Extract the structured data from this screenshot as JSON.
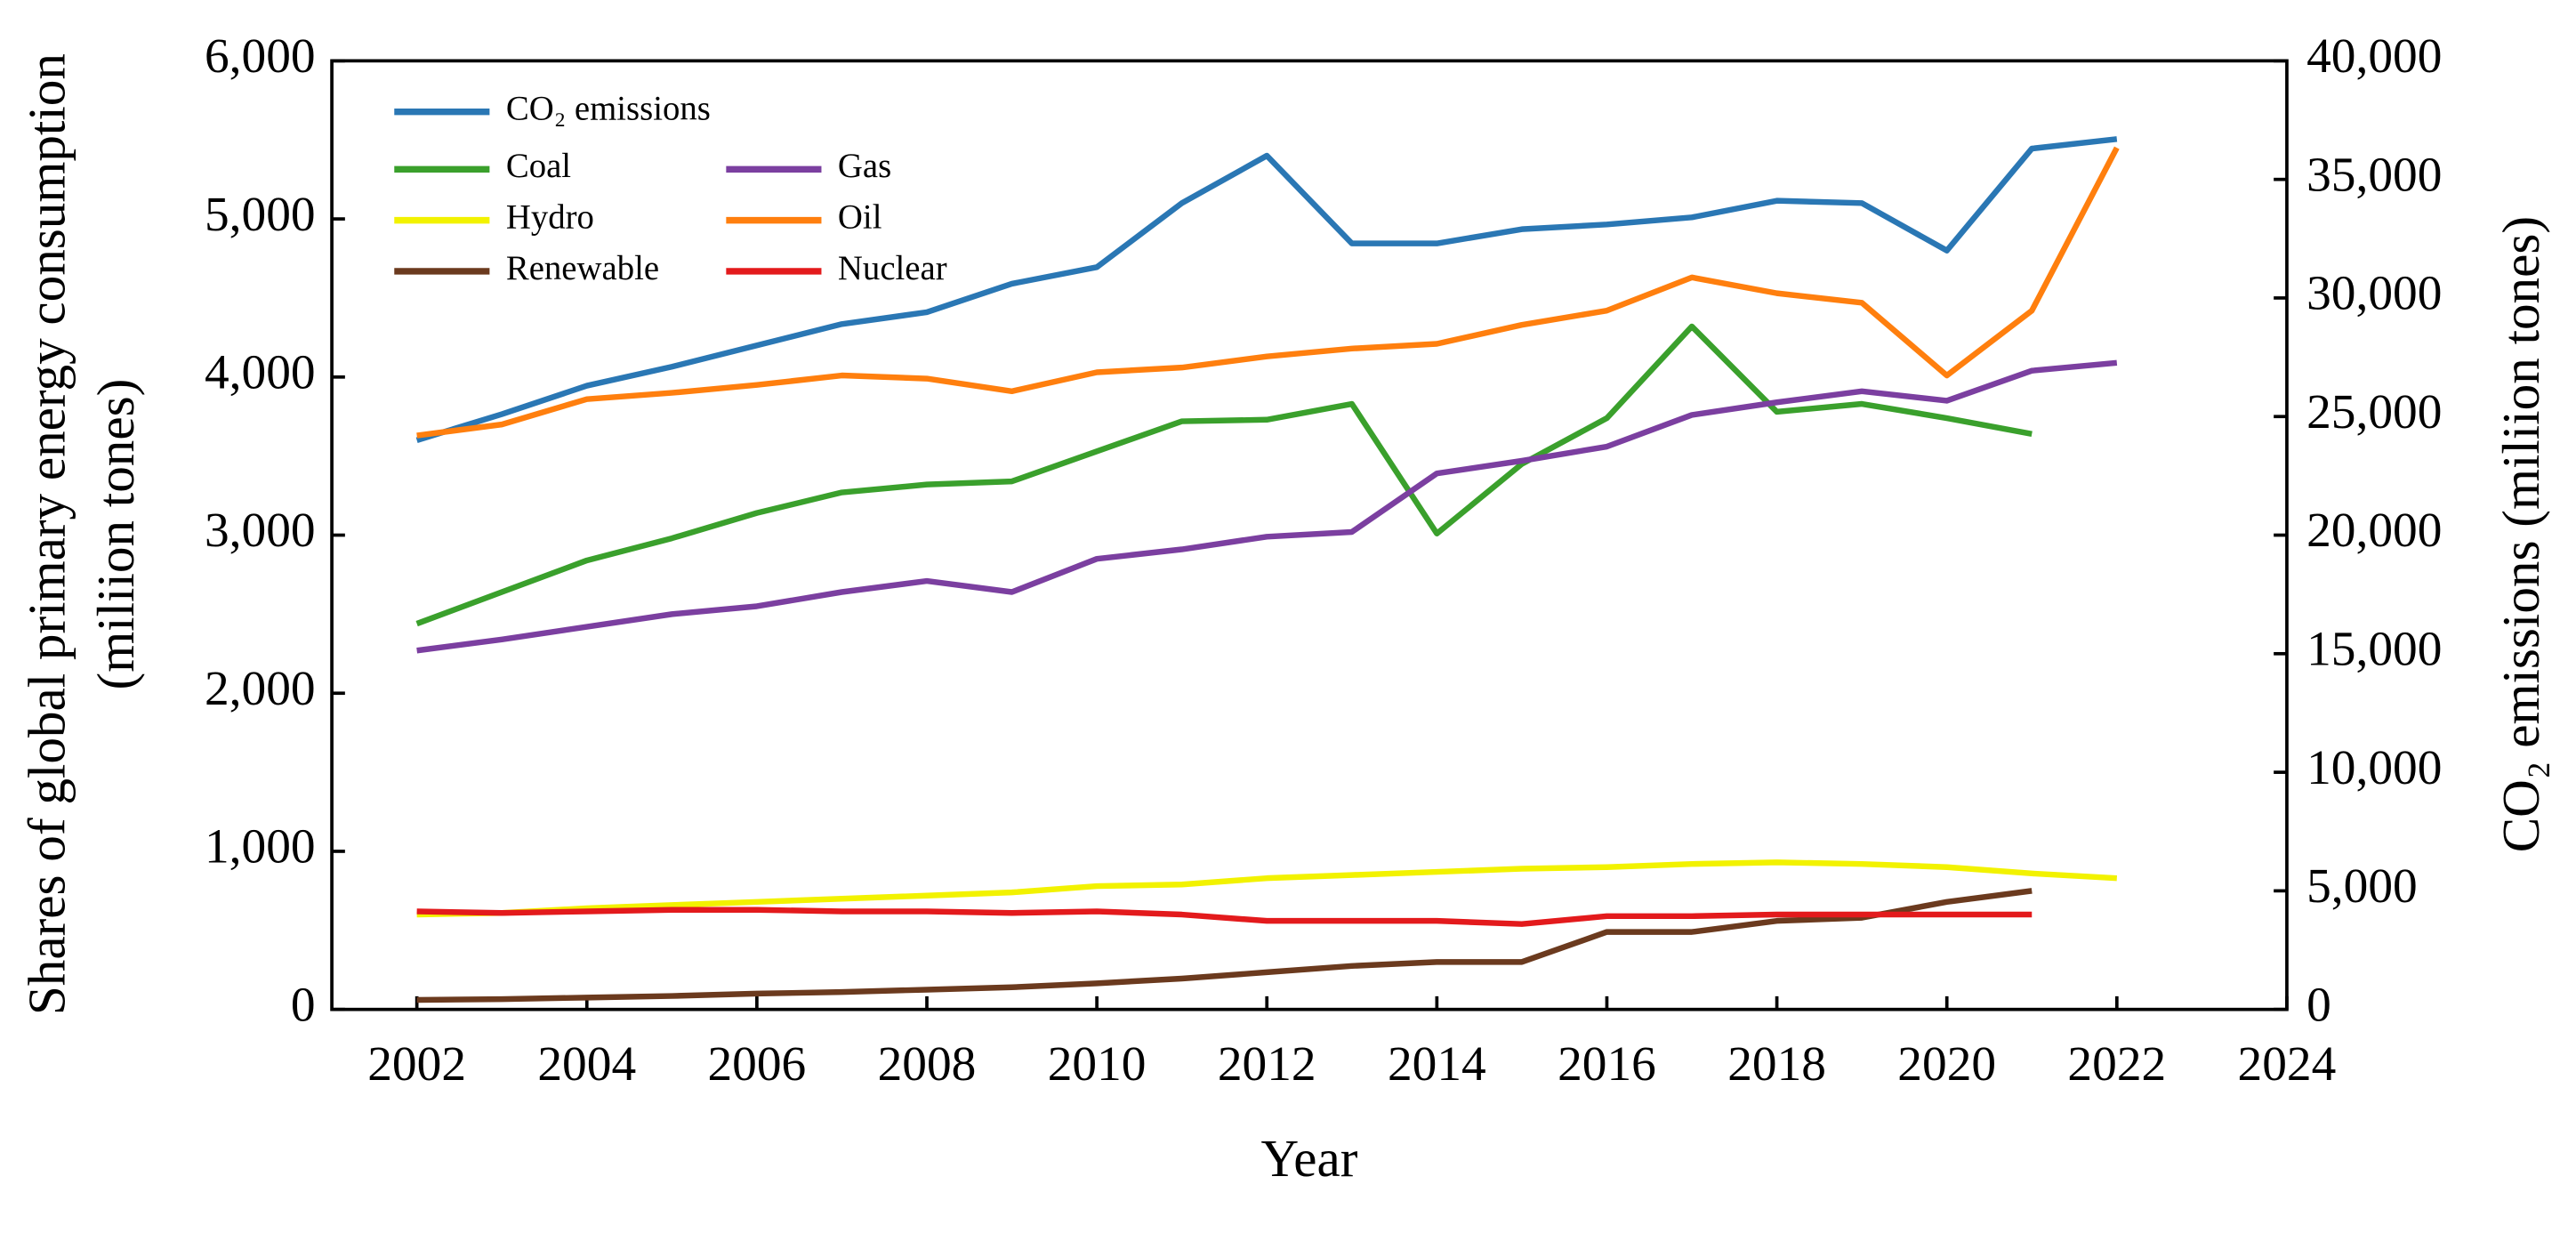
{
  "chart_data": {
    "type": "line",
    "xlabel": "Year",
    "ylabel": [
      "Shares of global primary energy consumption",
      "(miliion tones)"
    ],
    "y2label": "CO₂ emissions  (miliion tones)",
    "x": [
      2002,
      2003,
      2004,
      2005,
      2006,
      2007,
      2008,
      2009,
      2010,
      2011,
      2012,
      2013,
      2014,
      2015,
      2016,
      2017,
      2018,
      2019,
      2020,
      2021,
      2022
    ],
    "xlim": [
      2001,
      2024
    ],
    "xticks": [
      2002,
      2004,
      2006,
      2008,
      2010,
      2012,
      2014,
      2016,
      2018,
      2020,
      2022,
      2024
    ],
    "ylim": [
      0,
      6000
    ],
    "yticks": [
      0,
      {
        "value": 1000,
        "label": "1,000"
      },
      {
        "value": 2000,
        "label": "2,000"
      },
      {
        "value": 3000,
        "label": "3,000"
      },
      {
        "value": 4000,
        "label": "4,000"
      },
      {
        "value": 5000,
        "label": "5,000"
      },
      {
        "value": 6000,
        "label": "6,000"
      }
    ],
    "y2lim": [
      0,
      40000
    ],
    "y2ticks": [
      0,
      {
        "value": 5000,
        "label": "5,000"
      },
      {
        "value": 10000,
        "label": "10,000"
      },
      {
        "value": 15000,
        "label": "15,000"
      },
      {
        "value": 20000,
        "label": "20,000"
      },
      {
        "value": 25000,
        "label": "25,000"
      },
      {
        "value": 30000,
        "label": "30,000"
      },
      {
        "value": 35000,
        "label": "35,000"
      },
      {
        "value": 40000,
        "label": "40,000"
      }
    ],
    "legend": "upper left",
    "series": [
      {
        "name": "CO₂ emissions",
        "color": "#2a77b4",
        "axis": "y2",
        "values": [
          24000,
          25100,
          26300,
          27100,
          28000,
          28900,
          29400,
          30600,
          31300,
          34000,
          36000,
          32300,
          32300,
          32900,
          33100,
          33400,
          34100,
          34000,
          32000,
          36300,
          36700
        ]
      },
      {
        "name": "Coal",
        "color": "#3aa02c",
        "values": [
          2440,
          2640,
          2840,
          2980,
          3140,
          3270,
          3320,
          3340,
          3530,
          3720,
          3730,
          3830,
          3010,
          3450,
          3740,
          4320,
          3780,
          3830,
          3740,
          3640,
          null
        ]
      },
      {
        "name": "Gas",
        "color": "#7b3fa0",
        "values": [
          2270,
          2340,
          2420,
          2500,
          2550,
          2640,
          2710,
          2640,
          2850,
          2910,
          2990,
          3020,
          3390,
          3470,
          3560,
          3760,
          3840,
          3910,
          3850,
          4040,
          4090
        ]
      },
      {
        "name": "Hydro",
        "color": "#f2f200",
        "values": [
          600,
          610,
          640,
          660,
          680,
          700,
          720,
          740,
          780,
          790,
          830,
          850,
          870,
          890,
          900,
          920,
          930,
          920,
          900,
          860,
          830
        ]
      },
      {
        "name": "Oil",
        "color": "#ff7f0e",
        "values": [
          3630,
          3700,
          3860,
          3900,
          3950,
          4010,
          3990,
          3910,
          4030,
          4060,
          4130,
          4180,
          4210,
          4330,
          4420,
          4630,
          4530,
          4470,
          4010,
          4420,
          5450
        ]
      },
      {
        "name": "Renewable",
        "color": "#6b3a1e",
        "values": [
          60,
          65,
          75,
          85,
          100,
          110,
          125,
          140,
          165,
          195,
          235,
          275,
          300,
          300,
          490,
          490,
          560,
          580,
          680,
          750,
          null
        ]
      },
      {
        "name": "Nuclear",
        "color": "#e31a1c",
        "values": [
          620,
          610,
          620,
          630,
          630,
          620,
          620,
          610,
          620,
          600,
          560,
          560,
          560,
          540,
          590,
          590,
          600,
          600,
          600,
          600,
          null
        ]
      }
    ]
  }
}
